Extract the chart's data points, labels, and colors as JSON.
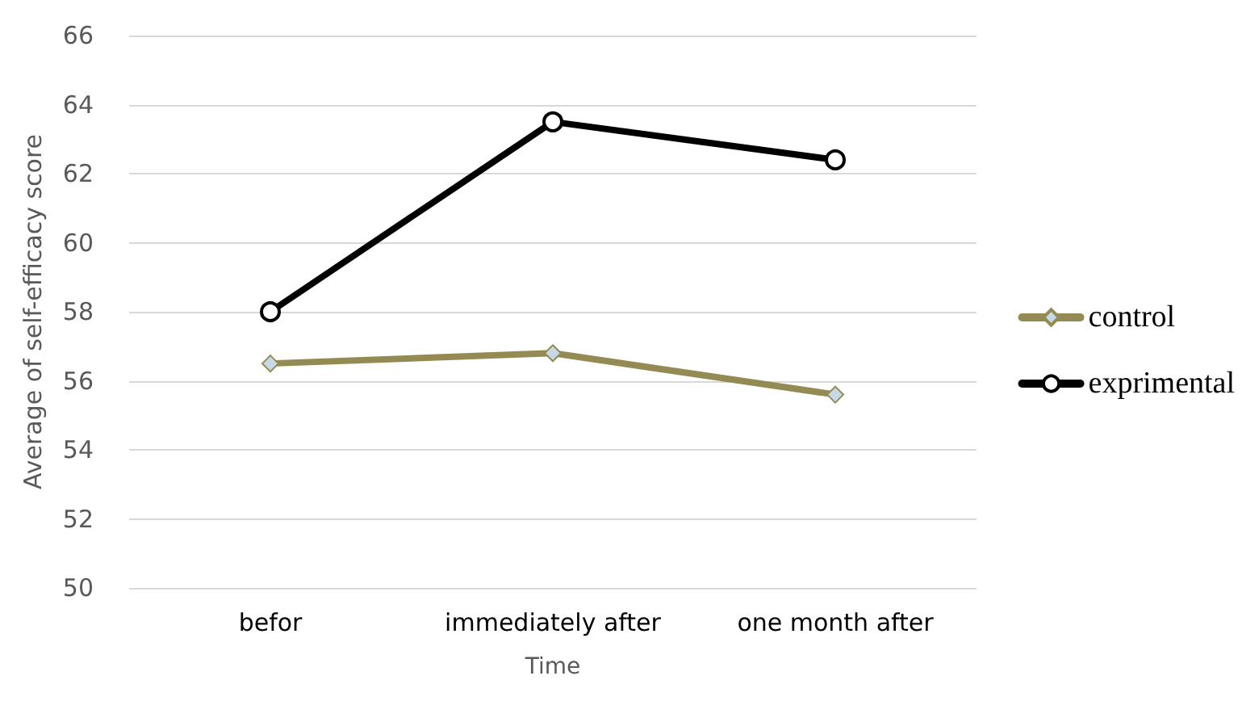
{
  "chart_data": {
    "type": "line",
    "xlabel": "Time",
    "ylabel": "Average of self-efficacy score",
    "categories": [
      "befor",
      "immediately after",
      "one month after"
    ],
    "series": [
      {
        "name": "control",
        "color": "#948a54",
        "marker": "diamond",
        "values": [
          56.5,
          56.8,
          55.6
        ]
      },
      {
        "name": "exprimental",
        "color": "#000000",
        "marker": "circle",
        "values": [
          58,
          63.5,
          62.4
        ]
      }
    ],
    "ylim": [
      50,
      66
    ],
    "yticks": [
      50,
      52,
      54,
      56,
      58,
      60,
      62,
      64,
      66
    ],
    "grid": "y",
    "legend": "right"
  }
}
